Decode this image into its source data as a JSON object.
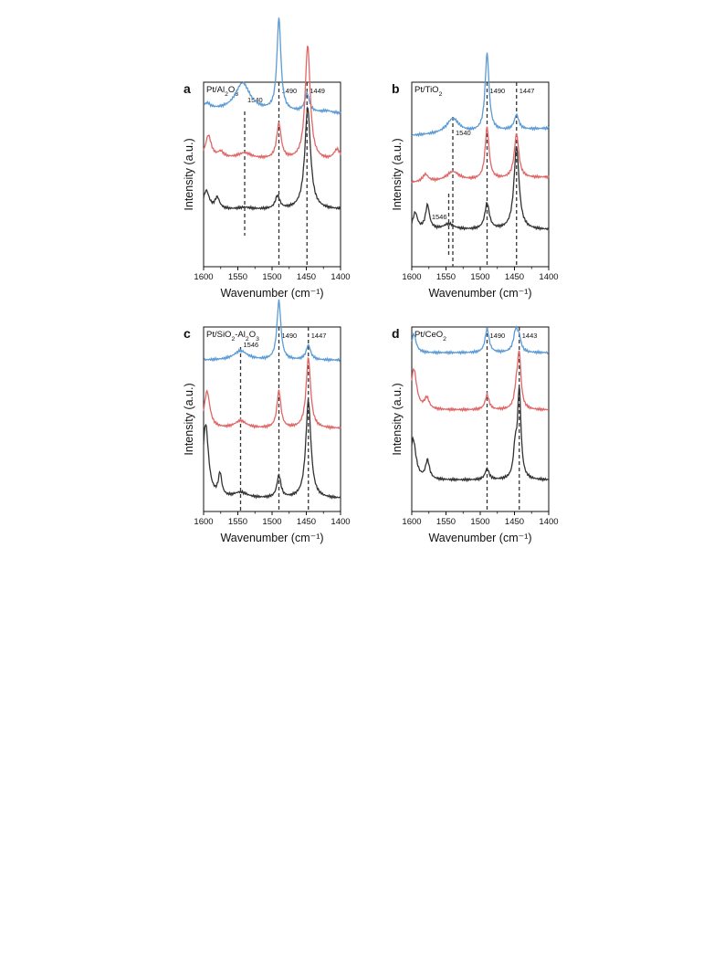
{
  "colors": {
    "top": "#5b9bd5",
    "middle": "#e06666",
    "bottom": "#333333",
    "axis": "#111111",
    "refline": "#333333"
  },
  "axes": {
    "xlabel": "Wavenumber (cm⁻¹)",
    "ylabel": "Intensity (a.u.)",
    "xticks": [
      "1600",
      "1550",
      "1500",
      "1450",
      "1400"
    ]
  },
  "chart_data": [
    {
      "type": "line",
      "panel": "a",
      "title": "Pt/Al2O3",
      "xlabel": "Wavenumber (cm⁻¹)",
      "ylabel": "Intensity (a.u.)",
      "xlim": [
        1600,
        1400
      ],
      "xreversed": true,
      "reference_lines": [
        {
          "x": 1540,
          "label": "1540"
        },
        {
          "x": 1490,
          "label": "1490"
        },
        {
          "x": 1449,
          "label": "1449"
        }
      ],
      "series": [
        {
          "color": "top",
          "baseline": 0.16,
          "slope": 0.02,
          "peaks": [
            {
              "x": 1595,
              "h": 0.03,
              "w": 6
            },
            {
              "x": 1543,
              "h": 0.15,
              "w": 13
            },
            {
              "x": 1490,
              "h": 0.5,
              "w": 3.5
            },
            {
              "x": 1449,
              "h": 0.1,
              "w": 4
            },
            {
              "x": 1420,
              "h": 0.01,
              "w": 8
            }
          ]
        },
        {
          "color": "middle",
          "baseline": 0.42,
          "slope": 0.02,
          "peaks": [
            {
              "x": 1593,
              "h": 0.12,
              "w": 5
            },
            {
              "x": 1575,
              "h": 0.03,
              "w": 5
            },
            {
              "x": 1540,
              "h": 0.03,
              "w": 12
            },
            {
              "x": 1490,
              "h": 0.19,
              "w": 4
            },
            {
              "x": 1448,
              "h": 0.62,
              "w": 4.5
            },
            {
              "x": 1405,
              "h": 0.06,
              "w": 6
            }
          ]
        },
        {
          "color": "bottom",
          "baseline": 0.69,
          "slope": 0.0,
          "peaks": [
            {
              "x": 1596,
              "h": 0.1,
              "w": 5
            },
            {
              "x": 1580,
              "h": 0.06,
              "w": 4
            },
            {
              "x": 1540,
              "h": 0.01,
              "w": 10
            },
            {
              "x": 1492,
              "h": 0.07,
              "w": 4
            },
            {
              "x": 1448,
              "h": 0.55,
              "w": 5
            }
          ]
        }
      ]
    },
    {
      "type": "line",
      "panel": "b",
      "title": "Pt/TiO2",
      "xlabel": "Wavenumber (cm⁻¹)",
      "ylabel": "Intensity (a.u.)",
      "xlim": [
        1600,
        1400
      ],
      "xreversed": true,
      "reference_lines": [
        {
          "x": 1540,
          "label": "1540"
        },
        {
          "x": 1546,
          "label": "1546"
        },
        {
          "x": 1490,
          "label": "1490"
        },
        {
          "x": 1447,
          "label": "1447"
        }
      ],
      "series": [
        {
          "color": "top",
          "baseline": 0.27,
          "slope": -0.04,
          "peaks": [
            {
              "x": 1540,
              "h": 0.08,
              "w": 11
            },
            {
              "x": 1490,
              "h": 0.42,
              "w": 3.5
            },
            {
              "x": 1447,
              "h": 0.08,
              "w": 4
            }
          ]
        },
        {
          "color": "middle",
          "baseline": 0.53,
          "slope": -0.03,
          "peaks": [
            {
              "x": 1580,
              "h": 0.04,
              "w": 5
            },
            {
              "x": 1540,
              "h": 0.05,
              "w": 11
            },
            {
              "x": 1490,
              "h": 0.28,
              "w": 3.5
            },
            {
              "x": 1447,
              "h": 0.24,
              "w": 4
            }
          ]
        },
        {
          "color": "bottom",
          "baseline": 0.8,
          "slope": 0.0,
          "peaks": [
            {
              "x": 1595,
              "h": 0.09,
              "w": 4
            },
            {
              "x": 1577,
              "h": 0.13,
              "w": 3.5
            },
            {
              "x": 1546,
              "h": 0.03,
              "w": 9
            },
            {
              "x": 1490,
              "h": 0.14,
              "w": 4
            },
            {
              "x": 1447,
              "h": 0.45,
              "w": 4.5
            }
          ]
        }
      ]
    },
    {
      "type": "line",
      "panel": "c",
      "title": "Pt/SiO2-Al2O3",
      "xlabel": "Wavenumber (cm⁻¹)",
      "ylabel": "Intensity (a.u.)",
      "xlim": [
        1600,
        1400
      ],
      "xreversed": true,
      "reference_lines": [
        {
          "x": 1546,
          "label": "1546"
        },
        {
          "x": 1490,
          "label": "1490"
        },
        {
          "x": 1447,
          "label": "1447"
        }
      ],
      "series": [
        {
          "color": "top",
          "baseline": 0.18,
          "slope": 0.0,
          "peaks": [
            {
              "x": 1546,
              "h": 0.05,
              "w": 12
            },
            {
              "x": 1490,
              "h": 0.32,
              "w": 3.5
            },
            {
              "x": 1447,
              "h": 0.08,
              "w": 4
            }
          ]
        },
        {
          "color": "middle",
          "baseline": 0.55,
          "slope": 0.0,
          "peaks": [
            {
              "x": 1595,
              "h": 0.2,
              "w": 5
            },
            {
              "x": 1546,
              "h": 0.04,
              "w": 10
            },
            {
              "x": 1490,
              "h": 0.2,
              "w": 3.5
            },
            {
              "x": 1447,
              "h": 0.38,
              "w": 4
            }
          ]
        },
        {
          "color": "bottom",
          "baseline": 0.93,
          "slope": 0.0,
          "peaks": [
            {
              "x": 1597,
              "h": 0.4,
              "w": 5
            },
            {
              "x": 1576,
              "h": 0.12,
              "w": 3
            },
            {
              "x": 1546,
              "h": 0.03,
              "w": 12
            },
            {
              "x": 1490,
              "h": 0.12,
              "w": 3.5
            },
            {
              "x": 1447,
              "h": 0.53,
              "w": 4.5
            }
          ]
        }
      ]
    },
    {
      "type": "line",
      "panel": "d",
      "title": "Pt/CeO2",
      "xlabel": "Wavenumber (cm⁻¹)",
      "ylabel": "Intensity (a.u.)",
      "xlim": [
        1600,
        1400
      ],
      "xreversed": true,
      "reference_lines": [
        {
          "x": 1490,
          "label": "1490"
        },
        {
          "x": 1443,
          "label": "1443"
        }
      ],
      "series": [
        {
          "color": "top",
          "baseline": 0.14,
          "slope": 0.0,
          "peaks": [
            {
              "x": 1597,
              "h": 0.1,
              "w": 4
            },
            {
              "x": 1490,
              "h": 0.13,
              "w": 3.5
            },
            {
              "x": 1448,
              "h": 0.12,
              "w": 4
            },
            {
              "x": 1443,
              "h": 0.06,
              "w": 3
            }
          ]
        },
        {
          "color": "middle",
          "baseline": 0.45,
          "slope": 0.0,
          "peaks": [
            {
              "x": 1597,
              "h": 0.22,
              "w": 5
            },
            {
              "x": 1578,
              "h": 0.06,
              "w": 4
            },
            {
              "x": 1490,
              "h": 0.08,
              "w": 3.5
            },
            {
              "x": 1447,
              "h": 0.1,
              "w": 3.5
            },
            {
              "x": 1443,
              "h": 0.28,
              "w": 3
            }
          ]
        },
        {
          "color": "bottom",
          "baseline": 0.83,
          "slope": 0.0,
          "peaks": [
            {
              "x": 1598,
              "h": 0.22,
              "w": 5
            },
            {
              "x": 1577,
              "h": 0.1,
              "w": 3.5
            },
            {
              "x": 1490,
              "h": 0.06,
              "w": 3.5
            },
            {
              "x": 1449,
              "h": 0.15,
              "w": 3
            },
            {
              "x": 1443,
              "h": 0.48,
              "w": 3
            }
          ]
        }
      ]
    }
  ]
}
